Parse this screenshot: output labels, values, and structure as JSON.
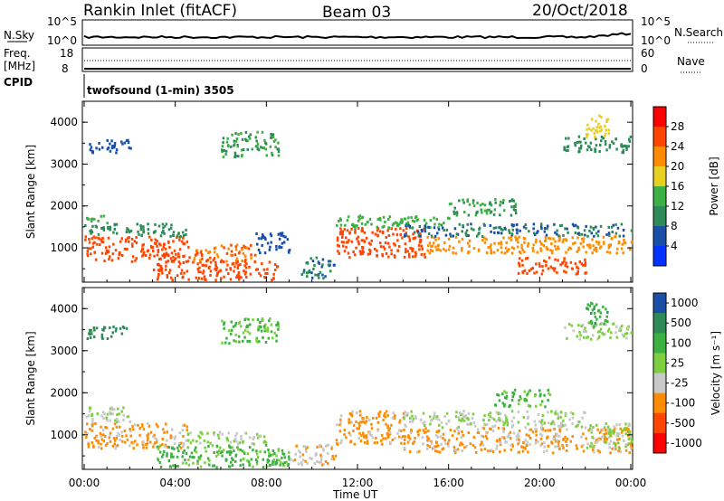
{
  "header": {
    "station": "Rankin Inlet (fitACF)",
    "beam": "Beam 03",
    "date": "20/Oct/2018"
  },
  "strip1": {
    "left_label": "N.Sky",
    "right_label": "N.Search",
    "left_ticks": [
      "10^5",
      "10^0"
    ],
    "right_ticks": [
      "10^5",
      "10^0"
    ]
  },
  "strip2": {
    "left_label_1": "Freq.",
    "left_label_2": "[MHz]",
    "right_label": "Nave",
    "left_ticks": [
      "18",
      "8"
    ],
    "right_ticks": [
      "60",
      "0"
    ]
  },
  "cpid": {
    "label": "CPID",
    "value": "twofsound (1-min) 3505"
  },
  "x_axis": {
    "label": "Time UT",
    "ticks": [
      "00:00",
      "04:00",
      "08:00",
      "12:00",
      "16:00",
      "20:00",
      "00:00"
    ]
  },
  "colors": {
    "blue": "#0033ff",
    "navy": "#1a4fa8",
    "green_dark": "#2e8b57",
    "green_mid": "#3cb043",
    "green_light": "#7ccf3f",
    "yellow": "#e8d020",
    "orange": "#ff8c00",
    "orange_red": "#ff4500",
    "red": "#ff0000",
    "grey": "#c8c8c8"
  },
  "chart_data": [
    {
      "type": "heatmap",
      "panel": "power",
      "ylabel": "Slant Range [km]",
      "y_ticks": [
        "1000",
        "2000",
        "3000",
        "4000"
      ],
      "colorbar_label": "Power [dB]",
      "colorbar_ticks": [
        "4",
        "8",
        "12",
        "16",
        "20",
        "24",
        "28"
      ],
      "colorbar_range": [
        0,
        32
      ],
      "x_range_hours": [
        0,
        24
      ],
      "y_range_km": [
        180,
        4500
      ],
      "bands": [
        {
          "t0": 0.0,
          "t1": 4.5,
          "r0": 700,
          "r1": 1300,
          "v": 26
        },
        {
          "t0": 0.0,
          "t1": 4.5,
          "r0": 1300,
          "r1": 1600,
          "v": 10
        },
        {
          "t0": 0.0,
          "t1": 1.0,
          "r0": 1600,
          "r1": 1800,
          "v": 14
        },
        {
          "t0": 3.0,
          "t1": 8.5,
          "r0": 250,
          "r1": 700,
          "v": 26
        },
        {
          "t0": 4.5,
          "t1": 7.5,
          "r0": 700,
          "r1": 1100,
          "v": 24
        },
        {
          "t0": 7.5,
          "t1": 9.0,
          "r0": 900,
          "r1": 1400,
          "v": 6
        },
        {
          "t0": 9.5,
          "t1": 11.0,
          "r0": 300,
          "r1": 800,
          "v": 8
        },
        {
          "t0": 11.0,
          "t1": 15.0,
          "r0": 800,
          "r1": 1500,
          "v": 26
        },
        {
          "t0": 11.0,
          "t1": 16.0,
          "r0": 1500,
          "r1": 1800,
          "v": 14
        },
        {
          "t0": 15.0,
          "t1": 24.0,
          "r0": 900,
          "r1": 1300,
          "v": 22
        },
        {
          "t0": 14.0,
          "t1": 24.0,
          "r0": 1300,
          "r1": 1600,
          "v": 8
        },
        {
          "t0": 19.0,
          "t1": 22.0,
          "r0": 400,
          "r1": 800,
          "v": 26
        },
        {
          "t0": 16.0,
          "t1": 19.0,
          "r0": 1800,
          "r1": 2200,
          "v": 12
        },
        {
          "t0": 0.0,
          "t1": 2.0,
          "r0": 3300,
          "r1": 3600,
          "v": 6
        },
        {
          "t0": 6.0,
          "t1": 8.5,
          "r0": 3200,
          "r1": 3800,
          "v": 12
        },
        {
          "t0": 21.0,
          "t1": 24.0,
          "r0": 3300,
          "r1": 3700,
          "v": 10
        },
        {
          "t0": 22.0,
          "t1": 23.0,
          "r0": 3600,
          "r1": 4200,
          "v": 18
        }
      ]
    },
    {
      "type": "heatmap",
      "panel": "velocity",
      "ylabel": "Slant Range [km]",
      "y_ticks": [
        "1000",
        "2000",
        "3000",
        "4000"
      ],
      "colorbar_label": "Velocity [m s⁻¹]",
      "colorbar_ticks": [
        "1000",
        "500",
        "100",
        "25",
        "-25",
        "-100",
        "-500",
        "-1000"
      ],
      "colorbar_range": [
        -1000,
        1000
      ],
      "x_range_hours": [
        0,
        24
      ],
      "y_range_km": [
        180,
        4500
      ],
      "bands": [
        {
          "t0": 0.0,
          "t1": 4.5,
          "r0": 700,
          "r1": 1300,
          "v": -300
        },
        {
          "t0": 0.0,
          "t1": 2.0,
          "r0": 1300,
          "r1": 1700,
          "v": 0
        },
        {
          "t0": 3.0,
          "t1": 9.0,
          "r0": 250,
          "r1": 800,
          "v": 300
        },
        {
          "t0": 4.5,
          "t1": 8.0,
          "r0": 800,
          "r1": 1100,
          "v": 50
        },
        {
          "t0": 9.0,
          "t1": 11.0,
          "r0": 300,
          "r1": 800,
          "v": -200
        },
        {
          "t0": 11.0,
          "t1": 14.0,
          "r0": 800,
          "r1": 1600,
          "v": -300
        },
        {
          "t0": 14.0,
          "t1": 22.0,
          "r0": 1200,
          "r1": 1600,
          "v": 0
        },
        {
          "t0": 14.0,
          "t1": 24.0,
          "r0": 600,
          "r1": 1200,
          "v": -300
        },
        {
          "t0": 18.0,
          "t1": 20.5,
          "r0": 1700,
          "r1": 2100,
          "v": 300
        },
        {
          "t0": 22.0,
          "t1": 24.0,
          "r0": 700,
          "r1": 1300,
          "v": 60
        },
        {
          "t0": 0.0,
          "t1": 2.0,
          "r0": 3300,
          "r1": 3600,
          "v": 600
        },
        {
          "t0": 6.0,
          "t1": 8.5,
          "r0": 3200,
          "r1": 3800,
          "v": 300
        },
        {
          "t0": 21.0,
          "t1": 24.0,
          "r0": 3300,
          "r1": 3700,
          "v": 60
        },
        {
          "t0": 22.0,
          "t1": 23.0,
          "r0": 3600,
          "r1": 4200,
          "v": 400
        }
      ]
    }
  ]
}
